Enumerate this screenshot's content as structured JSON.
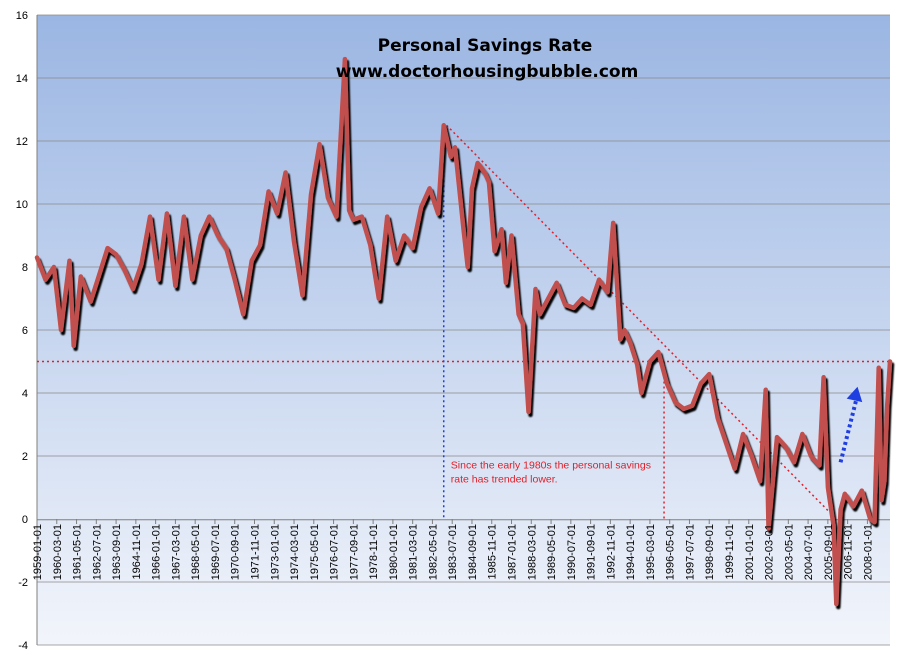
{
  "chart_data": {
    "type": "line",
    "title": "Personal Savings Rate",
    "subtitle": "www.doctorhousingbubble.com",
    "xlabel": "",
    "ylabel": "",
    "ylim": [
      -4,
      16
    ],
    "yticks": [
      -4,
      -2,
      0,
      2,
      4,
      6,
      8,
      10,
      12,
      14,
      16
    ],
    "grid": true,
    "legend": "none",
    "xrange": [
      "1959-01-01",
      "2009-05-01"
    ],
    "xtick_labels": [
      "1959-01-01",
      "1960-03-01",
      "1961-05-01",
      "1962-07-01",
      "1963-09-01",
      "1964-11-01",
      "1966-01-01",
      "1967-03-01",
      "1968-05-01",
      "1969-07-01",
      "1970-09-01",
      "1971-11-01",
      "1973-01-01",
      "1974-03-01",
      "1975-05-01",
      "1976-07-01",
      "1977-09-01",
      "1978-11-01",
      "1980-01-01",
      "1981-03-01",
      "1982-05-01",
      "1983-07-01",
      "1984-09-01",
      "1985-11-01",
      "1987-01-01",
      "1988-03-01",
      "1989-05-01",
      "1990-07-01",
      "1991-09-01",
      "1992-11-01",
      "1994-01-01",
      "1995-03-01",
      "1996-05-01",
      "1997-07-01",
      "1998-09-01",
      "1999-11-01",
      "2001-01-01",
      "2002-03-01",
      "2003-05-01",
      "2004-07-01",
      "2005-09-01",
      "2006-11-01",
      "2008-01-01"
    ],
    "series": [
      {
        "name": "",
        "color": "#c0504d",
        "points": [
          [
            "1959-01-01",
            8.3
          ],
          [
            "1959-07-01",
            7.6
          ],
          [
            "1960-01-01",
            8.0
          ],
          [
            "1960-06-01",
            6.0
          ],
          [
            "1960-12-01",
            8.2
          ],
          [
            "1961-03-01",
            5.5
          ],
          [
            "1961-08-01",
            7.7
          ],
          [
            "1962-03-01",
            6.9
          ],
          [
            "1962-08-01",
            7.6
          ],
          [
            "1963-03-01",
            8.6
          ],
          [
            "1963-09-01",
            8.4
          ],
          [
            "1964-03-01",
            7.9
          ],
          [
            "1964-09-01",
            7.3
          ],
          [
            "1965-03-01",
            8.1
          ],
          [
            "1965-09-01",
            9.6
          ],
          [
            "1966-03-01",
            7.6
          ],
          [
            "1966-09-01",
            9.7
          ],
          [
            "1967-03-01",
            7.4
          ],
          [
            "1967-09-01",
            9.6
          ],
          [
            "1968-03-01",
            7.6
          ],
          [
            "1968-09-01",
            9.0
          ],
          [
            "1969-03-01",
            9.6
          ],
          [
            "1969-09-01",
            9.0
          ],
          [
            "1970-03-01",
            8.6
          ],
          [
            "1970-09-01",
            7.6
          ],
          [
            "1971-03-01",
            6.5
          ],
          [
            "1971-09-01",
            8.2
          ],
          [
            "1972-03-01",
            8.7
          ],
          [
            "1972-09-01",
            10.4
          ],
          [
            "1973-03-01",
            9.7
          ],
          [
            "1973-09-01",
            11.0
          ],
          [
            "1974-03-01",
            8.8
          ],
          [
            "1974-09-01",
            7.1
          ],
          [
            "1975-03-01",
            10.3
          ],
          [
            "1975-09-01",
            11.9
          ],
          [
            "1976-03-01",
            10.2
          ],
          [
            "1976-09-01",
            9.6
          ],
          [
            "1977-03-01",
            14.6
          ],
          [
            "1977-06-01",
            9.8
          ],
          [
            "1977-09-01",
            9.5
          ],
          [
            "1978-03-01",
            9.6
          ],
          [
            "1978-09-01",
            8.7
          ],
          [
            "1979-03-01",
            7.0
          ],
          [
            "1979-09-01",
            9.6
          ],
          [
            "1980-03-01",
            8.2
          ],
          [
            "1980-09-01",
            9.0
          ],
          [
            "1981-03-01",
            8.6
          ],
          [
            "1981-09-01",
            9.9
          ],
          [
            "1982-03-01",
            10.5
          ],
          [
            "1982-09-01",
            9.7
          ],
          [
            "1983-01-01",
            12.5
          ],
          [
            "1983-06-01",
            11.5
          ],
          [
            "1983-09-01",
            11.8
          ],
          [
            "1984-03-01",
            9.2
          ],
          [
            "1984-06-01",
            8.0
          ],
          [
            "1984-09-01",
            10.5
          ],
          [
            "1985-01-01",
            11.3
          ],
          [
            "1985-06-01",
            11.0
          ],
          [
            "1985-09-01",
            10.7
          ],
          [
            "1986-01-01",
            8.5
          ],
          [
            "1986-06-01",
            9.2
          ],
          [
            "1986-09-01",
            7.5
          ],
          [
            "1987-01-01",
            9.0
          ],
          [
            "1987-06-01",
            6.5
          ],
          [
            "1987-09-01",
            6.2
          ],
          [
            "1988-01-01",
            3.4
          ],
          [
            "1988-06-01",
            7.3
          ],
          [
            "1988-09-01",
            6.5
          ],
          [
            "1989-03-01",
            7.0
          ],
          [
            "1989-09-01",
            7.5
          ],
          [
            "1990-03-01",
            6.8
          ],
          [
            "1990-09-01",
            6.7
          ],
          [
            "1991-03-01",
            7.0
          ],
          [
            "1991-09-01",
            6.8
          ],
          [
            "1992-03-01",
            7.6
          ],
          [
            "1992-09-01",
            7.2
          ],
          [
            "1993-01-01",
            9.4
          ],
          [
            "1993-06-01",
            5.7
          ],
          [
            "1993-09-01",
            6.0
          ],
          [
            "1994-01-01",
            5.6
          ],
          [
            "1994-06-01",
            4.9
          ],
          [
            "1994-09-01",
            4.0
          ],
          [
            "1995-03-01",
            5.0
          ],
          [
            "1995-09-01",
            5.3
          ],
          [
            "1996-03-01",
            4.3
          ],
          [
            "1996-09-01",
            3.7
          ],
          [
            "1997-03-01",
            3.5
          ],
          [
            "1997-09-01",
            3.6
          ],
          [
            "1998-03-01",
            4.3
          ],
          [
            "1998-09-01",
            4.6
          ],
          [
            "1999-03-01",
            3.2
          ],
          [
            "1999-09-01",
            2.4
          ],
          [
            "2000-03-01",
            1.6
          ],
          [
            "2000-09-01",
            2.7
          ],
          [
            "2001-03-01",
            2.0
          ],
          [
            "2001-09-01",
            1.2
          ],
          [
            "2002-01-01",
            4.1
          ],
          [
            "2002-03-01",
            -0.3
          ],
          [
            "2002-09-01",
            2.6
          ],
          [
            "2003-03-01",
            2.3
          ],
          [
            "2003-09-01",
            1.8
          ],
          [
            "2004-03-01",
            2.7
          ],
          [
            "2004-09-01",
            2.0
          ],
          [
            "2005-03-01",
            1.7
          ],
          [
            "2005-06-01",
            4.5
          ],
          [
            "2005-09-01",
            1.0
          ],
          [
            "2006-01-01",
            -0.2
          ],
          [
            "2006-03-01",
            -2.7
          ],
          [
            "2006-06-01",
            0.3
          ],
          [
            "2006-09-01",
            0.8
          ],
          [
            "2007-03-01",
            0.4
          ],
          [
            "2007-09-01",
            0.9
          ],
          [
            "2008-03-01",
            0.0
          ],
          [
            "2008-06-01",
            -0.1
          ],
          [
            "2008-09-01",
            4.8
          ],
          [
            "2008-11-01",
            0.6
          ],
          [
            "2009-01-01",
            1.2
          ],
          [
            "2009-03-01",
            3.6
          ],
          [
            "2009-05-01",
            5.0
          ]
        ]
      }
    ],
    "reference_lines": {
      "horizontal_y": 5,
      "vertical_dates": [
        "1983-01-01",
        "1996-01-01"
      ],
      "trend_start": [
        "1983-03-01",
        12.5
      ],
      "trend_end": [
        "2006-03-01",
        0.0
      ],
      "color": "#e0202a",
      "vertical_color": "#1f3fe0"
    },
    "arrow": {
      "from": [
        "2006-06-01",
        1.8
      ],
      "to": [
        "2007-06-01",
        4.2
      ],
      "color": "#1f3fe0"
    },
    "annotation": {
      "lines": [
        "Since the early 1980s the personal savings",
        "rate has trended lower."
      ],
      "anchor": [
        "1983-06-01",
        1.6
      ]
    }
  }
}
